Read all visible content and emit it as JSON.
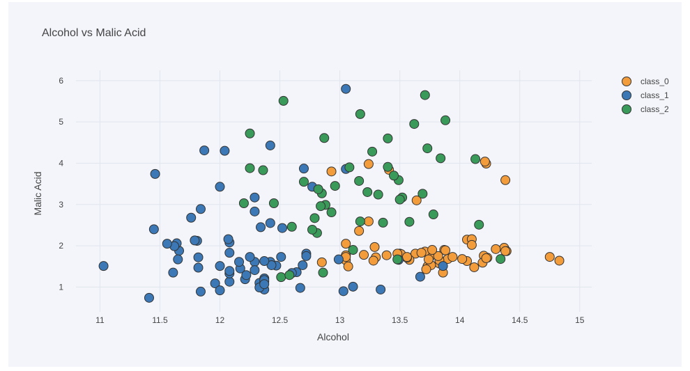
{
  "chart_data": {
    "type": "scatter",
    "title": "Alcohol vs Malic Acid",
    "xlabel": "Alcohol",
    "ylabel": "Malic Acid",
    "xlim": [
      10.8,
      15.1
    ],
    "ylim": [
      0.4,
      6.25
    ],
    "x_ticks": [
      "11",
      "11.5",
      "12",
      "12.5",
      "13",
      "13.5",
      "14",
      "14.5",
      "15"
    ],
    "y_ticks": [
      "1",
      "2",
      "3",
      "4",
      "5",
      "6"
    ],
    "grid": true,
    "legend_position": "top-right",
    "series": [
      {
        "name": "class_0",
        "color": "#f39c3c",
        "points": [
          [
            14.23,
            1.71
          ],
          [
            13.2,
            1.78
          ],
          [
            13.16,
            2.36
          ],
          [
            14.37,
            1.95
          ],
          [
            13.24,
            2.59
          ],
          [
            14.2,
            1.76
          ],
          [
            14.39,
            1.87
          ],
          [
            14.06,
            2.15
          ],
          [
            14.83,
            1.64
          ],
          [
            13.86,
            1.35
          ],
          [
            14.1,
            2.16
          ],
          [
            14.12,
            1.48
          ],
          [
            13.75,
            1.73
          ],
          [
            14.75,
            1.73
          ],
          [
            14.38,
            1.87
          ],
          [
            13.63,
            1.81
          ],
          [
            14.3,
            1.92
          ],
          [
            13.83,
            1.57
          ],
          [
            14.19,
            1.59
          ],
          [
            13.64,
            3.1
          ],
          [
            14.06,
            1.63
          ],
          [
            12.93,
            3.8
          ],
          [
            13.71,
            1.86
          ],
          [
            12.85,
            1.6
          ],
          [
            13.5,
            1.81
          ],
          [
            13.05,
            2.05
          ],
          [
            13.39,
            1.77
          ],
          [
            13.3,
            1.72
          ],
          [
            13.87,
            1.9
          ],
          [
            14.02,
            1.68
          ],
          [
            13.73,
            1.5
          ],
          [
            13.58,
            1.66
          ],
          [
            13.68,
            1.83
          ],
          [
            13.76,
            1.53
          ],
          [
            13.51,
            1.8
          ],
          [
            13.48,
            1.81
          ],
          [
            13.28,
            1.64
          ],
          [
            13.05,
            1.65
          ],
          [
            13.07,
            1.5
          ],
          [
            14.22,
            3.99
          ],
          [
            13.56,
            1.71
          ],
          [
            13.41,
            3.84
          ],
          [
            13.88,
            1.89
          ],
          [
            13.24,
            3.98
          ],
          [
            13.05,
            1.77
          ],
          [
            14.21,
            4.04
          ],
          [
            14.38,
            3.59
          ],
          [
            13.9,
            1.68
          ],
          [
            14.1,
            2.02
          ],
          [
            13.94,
            1.73
          ],
          [
            13.05,
            1.73
          ],
          [
            13.83,
            1.65
          ],
          [
            13.82,
            1.75
          ],
          [
            13.77,
            1.9
          ],
          [
            13.74,
            1.67
          ],
          [
            13.56,
            1.73
          ],
          [
            14.22,
            1.7
          ],
          [
            13.29,
            1.97
          ],
          [
            13.72,
            1.43
          ]
        ]
      },
      {
        "name": "class_1",
        "color": "#3b78b5",
        "points": [
          [
            12.37,
            0.94
          ],
          [
            12.33,
            1.1
          ],
          [
            12.64,
            1.36
          ],
          [
            13.67,
            1.25
          ],
          [
            12.37,
            1.13
          ],
          [
            12.17,
            1.45
          ],
          [
            12.37,
            1.21
          ],
          [
            13.11,
            1.01
          ],
          [
            12.37,
            1.17
          ],
          [
            13.34,
            0.94
          ],
          [
            12.21,
            1.19
          ],
          [
            12.29,
            1.61
          ],
          [
            13.86,
            1.51
          ],
          [
            13.49,
            1.66
          ],
          [
            12.99,
            1.67
          ],
          [
            11.96,
            1.09
          ],
          [
            11.66,
            1.88
          ],
          [
            13.03,
            0.9
          ],
          [
            11.84,
            2.89
          ],
          [
            12.33,
            0.99
          ],
          [
            12.7,
            3.87
          ],
          [
            12.0,
            0.92
          ],
          [
            12.72,
            1.81
          ],
          [
            12.08,
            1.13
          ],
          [
            13.05,
            3.86
          ],
          [
            11.84,
            0.89
          ],
          [
            12.67,
            0.98
          ],
          [
            12.16,
            1.61
          ],
          [
            11.65,
            1.67
          ],
          [
            11.64,
            2.06
          ],
          [
            12.08,
            1.33
          ],
          [
            12.08,
            1.83
          ],
          [
            12.0,
            1.51
          ],
          [
            12.69,
            1.53
          ],
          [
            12.29,
            2.83
          ],
          [
            11.62,
            1.99
          ],
          [
            12.47,
            1.52
          ],
          [
            11.81,
            2.12
          ],
          [
            12.29,
            1.41
          ],
          [
            12.37,
            1.07
          ],
          [
            12.29,
            3.17
          ],
          [
            12.08,
            2.08
          ],
          [
            12.6,
            1.34
          ],
          [
            12.34,
            2.45
          ],
          [
            11.82,
            1.72
          ],
          [
            12.51,
            1.73
          ],
          [
            12.42,
            2.55
          ],
          [
            12.25,
            1.73
          ],
          [
            12.72,
            1.75
          ],
          [
            12.22,
            1.29
          ],
          [
            11.61,
            1.35
          ],
          [
            11.46,
            3.74
          ],
          [
            12.52,
            2.43
          ],
          [
            11.76,
            2.68
          ],
          [
            11.41,
            0.74
          ],
          [
            12.08,
            1.39
          ],
          [
            11.03,
            1.51
          ],
          [
            11.82,
            1.47
          ],
          [
            12.42,
            1.61
          ],
          [
            12.77,
            3.43
          ],
          [
            12.0,
            3.43
          ],
          [
            11.45,
            2.4
          ],
          [
            11.56,
            2.05
          ],
          [
            12.42,
            4.43
          ],
          [
            13.05,
            5.8
          ],
          [
            11.87,
            4.31
          ],
          [
            12.07,
            2.16
          ],
          [
            12.43,
            1.53
          ],
          [
            11.79,
            2.13
          ],
          [
            12.37,
            1.63
          ],
          [
            12.04,
            4.3
          ]
        ]
      },
      {
        "name": "class_2",
        "color": "#3a9a5a",
        "points": [
          [
            12.86,
            1.35
          ],
          [
            12.88,
            2.99
          ],
          [
            12.81,
            2.31
          ],
          [
            12.7,
            3.55
          ],
          [
            12.51,
            1.24
          ],
          [
            12.6,
            2.46
          ],
          [
            12.25,
            4.72
          ],
          [
            12.53,
            5.51
          ],
          [
            13.49,
            3.59
          ],
          [
            12.84,
            2.96
          ],
          [
            12.93,
            2.81
          ],
          [
            13.36,
            2.56
          ],
          [
            13.52,
            3.17
          ],
          [
            13.62,
            4.95
          ],
          [
            12.25,
            3.88
          ],
          [
            13.16,
            3.57
          ],
          [
            13.88,
            5.04
          ],
          [
            12.87,
            4.61
          ],
          [
            13.32,
            3.24
          ],
          [
            13.08,
            3.9
          ],
          [
            13.5,
            3.12
          ],
          [
            12.79,
            2.67
          ],
          [
            13.11,
            1.9
          ],
          [
            13.23,
            3.3
          ],
          [
            12.58,
            1.29
          ],
          [
            13.17,
            5.19
          ],
          [
            13.84,
            4.12
          ],
          [
            12.45,
            3.03
          ],
          [
            14.34,
            1.68
          ],
          [
            13.48,
            1.67
          ],
          [
            12.36,
            3.83
          ],
          [
            13.69,
            3.26
          ],
          [
            12.85,
            3.27
          ],
          [
            12.96,
            3.45
          ],
          [
            13.78,
            2.76
          ],
          [
            13.73,
            4.36
          ],
          [
            13.45,
            3.7
          ],
          [
            12.82,
            3.37
          ],
          [
            13.58,
            2.58
          ],
          [
            13.4,
            4.6
          ],
          [
            12.2,
            3.03
          ],
          [
            12.77,
            2.39
          ],
          [
            14.16,
            2.51
          ],
          [
            13.71,
            5.65
          ],
          [
            13.4,
            3.91
          ],
          [
            13.27,
            4.28
          ],
          [
            13.17,
            2.59
          ],
          [
            14.13,
            4.1
          ]
        ]
      }
    ]
  }
}
